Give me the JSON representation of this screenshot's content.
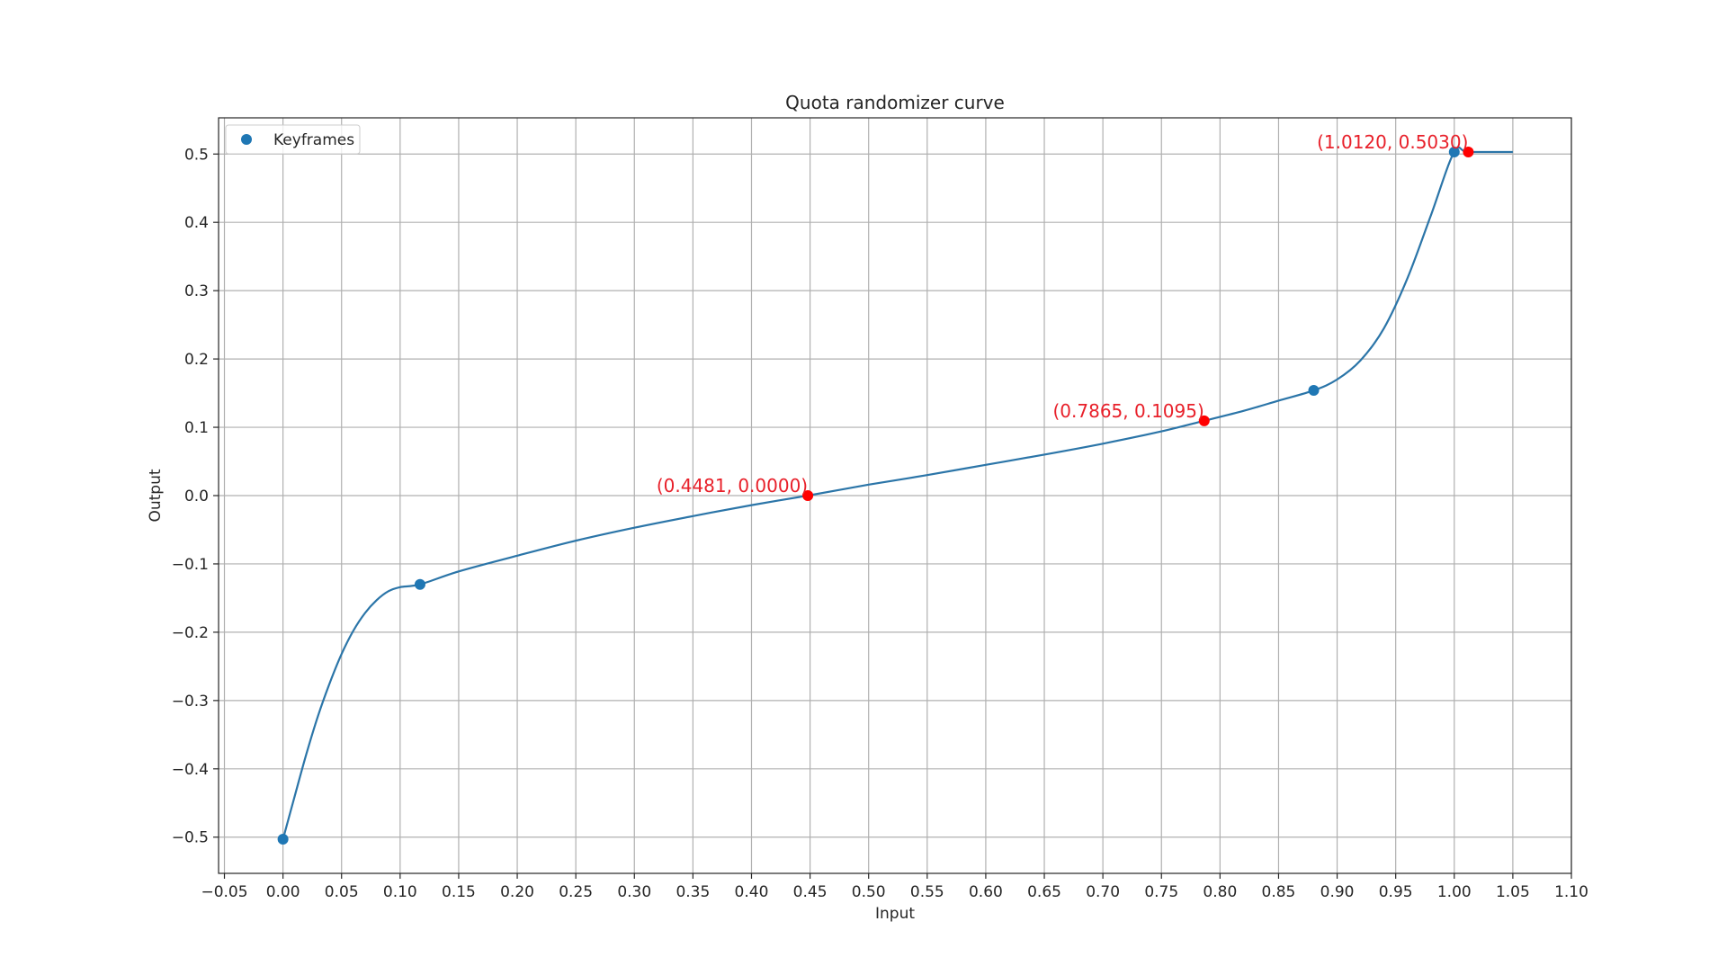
{
  "chart_data": {
    "type": "line",
    "title": "Quota randomizer curve",
    "xlabel": "Input",
    "ylabel": "Output",
    "xlim": [
      -0.055,
      1.1
    ],
    "ylim": [
      -0.553,
      0.553
    ],
    "xticks": [
      -0.05,
      0.0,
      0.05,
      0.1,
      0.15,
      0.2,
      0.25,
      0.3,
      0.35,
      0.4,
      0.45,
      0.5,
      0.55,
      0.6,
      0.65,
      0.7,
      0.75,
      0.8,
      0.85,
      0.9,
      0.95,
      1.0,
      1.05,
      1.1
    ],
    "xtick_labels": [
      "−0.05",
      "0.00",
      "0.05",
      "0.10",
      "0.15",
      "0.20",
      "0.25",
      "0.30",
      "0.35",
      "0.40",
      "0.45",
      "0.50",
      "0.55",
      "0.60",
      "0.65",
      "0.70",
      "0.75",
      "0.80",
      "0.85",
      "0.90",
      "0.95",
      "1.00",
      "1.05",
      "1.10"
    ],
    "yticks": [
      -0.5,
      -0.4,
      -0.3,
      -0.2,
      -0.1,
      0.0,
      0.1,
      0.2,
      0.3,
      0.4,
      0.5
    ],
    "ytick_labels": [
      "−0.5",
      "−0.4",
      "−0.3",
      "−0.2",
      "−0.1",
      "0.0",
      "0.1",
      "0.2",
      "0.3",
      "0.4",
      "0.5"
    ],
    "grid": true,
    "legend": {
      "position": "upper-left",
      "entries": [
        {
          "label": "Keyframes",
          "marker": "circle"
        }
      ]
    },
    "colors": {
      "curve": "#2b75a8",
      "keyframe": "#1f77b4",
      "highlight": "#ff0000",
      "annotation": "#e8202a",
      "grid": "#b0b0b0"
    },
    "series": [
      {
        "style": "line",
        "x": [
          0.0,
          0.01,
          0.02,
          0.03,
          0.04,
          0.05,
          0.06,
          0.07,
          0.08,
          0.09,
          0.1,
          0.117,
          0.15,
          0.2,
          0.25,
          0.3,
          0.35,
          0.4,
          0.448,
          0.5,
          0.55,
          0.6,
          0.65,
          0.7,
          0.75,
          0.7865,
          0.82,
          0.85,
          0.88,
          0.9,
          0.92,
          0.94,
          0.96,
          0.98,
          1.0,
          1.012,
          1.05
        ],
        "y": [
          -0.503,
          -0.44,
          -0.378,
          -0.322,
          -0.274,
          -0.232,
          -0.198,
          -0.172,
          -0.153,
          -0.14,
          -0.134,
          -0.13,
          -0.111,
          -0.088,
          -0.066,
          -0.047,
          -0.03,
          -0.014,
          0.0,
          0.016,
          0.03,
          0.045,
          0.06,
          0.076,
          0.094,
          0.1095,
          0.124,
          0.139,
          0.154,
          0.17,
          0.198,
          0.245,
          0.318,
          0.41,
          0.503,
          0.503,
          0.503
        ]
      },
      {
        "name": "Keyframes",
        "style": "markers",
        "x": [
          0.0,
          0.117,
          0.88,
          1.0
        ],
        "y": [
          -0.503,
          -0.13,
          0.154,
          0.503
        ]
      }
    ],
    "highlights": [
      {
        "x": 0.4481,
        "y": 0.0,
        "label": "(0.4481, 0.0000)"
      },
      {
        "x": 0.7865,
        "y": 0.1095,
        "label": "(0.7865, 0.1095)"
      },
      {
        "x": 1.012,
        "y": 0.503,
        "label": "(1.0120, 0.5030)"
      }
    ]
  }
}
